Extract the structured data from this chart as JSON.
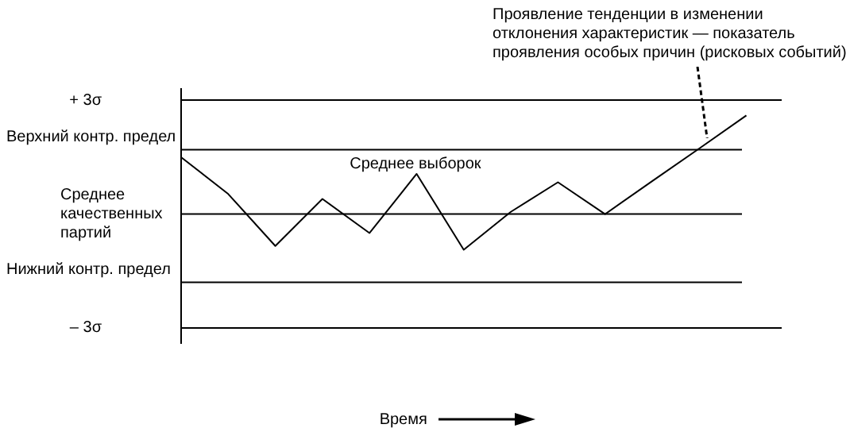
{
  "chart_data": {
    "type": "line",
    "xlabel": "Время",
    "categories": [
      null,
      null,
      null,
      null,
      null,
      null,
      null,
      null,
      null,
      null,
      null,
      null,
      null
    ],
    "series": [
      {
        "color": "#000000",
        "values": [
          1.5,
          0.53,
          -0.84,
          0.4,
          -0.5,
          1.06,
          -0.94,
          0.06,
          0.84,
          0,
          0.87,
          1.73,
          2.6
        ]
      }
    ],
    "ylim": [
      -3.4,
      3.3
    ],
    "yticks": [
      {
        "value": 3,
        "label": "+ 3σ"
      },
      {
        "value": -3,
        "label": "– 3σ"
      }
    ],
    "grid": "y",
    "legend": false,
    "marker": "none",
    "line_style": "solid",
    "tick_labels": "y",
    "ref_lines": [
      {
        "axis": "y",
        "value": 1.7,
        "label": "Верхний контр. предел",
        "color": "#000000"
      },
      {
        "axis": "y",
        "value": 0,
        "label": "Среднее качественных партий",
        "color": "#000000"
      },
      {
        "axis": "y",
        "value": -1.8,
        "label": "Нижний контр. предел",
        "color": "#000000"
      }
    ],
    "annotations": [
      "Среднее выборок",
      "Проявление тенденции в изменении отклонения характеристик — показатель проявления особых причин (рисковых событий)"
    ]
  }
}
